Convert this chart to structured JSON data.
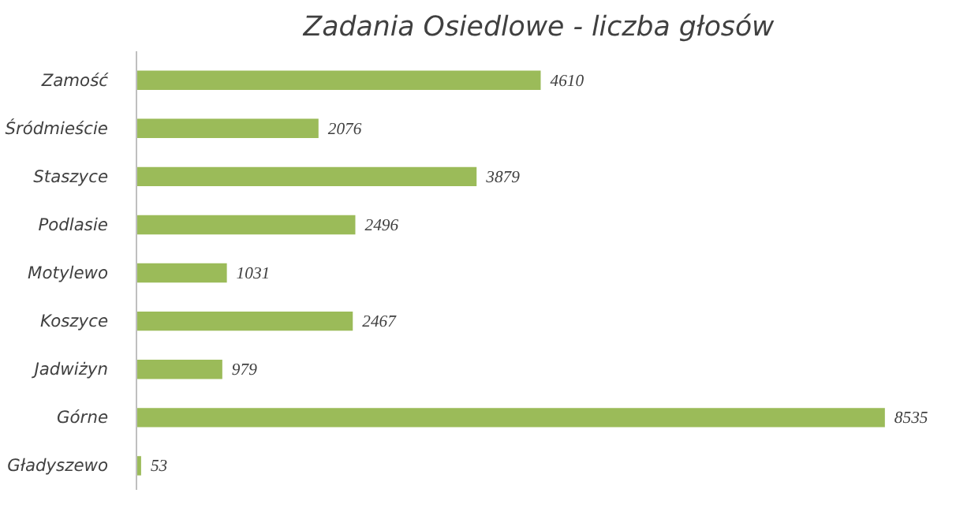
{
  "chart_data": {
    "type": "bar",
    "orientation": "horizontal",
    "title": "Zadania Osiedlowe - liczba głosów",
    "categories": [
      "Zamość",
      "Śródmieście",
      "Staszyce",
      "Podlasie",
      "Motylewo",
      "Koszyce",
      "Jadwiżyn",
      "Górne",
      "Gładyszewo"
    ],
    "values": [
      4610,
      2076,
      3879,
      2496,
      1031,
      2467,
      979,
      8535,
      53
    ],
    "color": "#9bbb59",
    "data_labels": true
  }
}
